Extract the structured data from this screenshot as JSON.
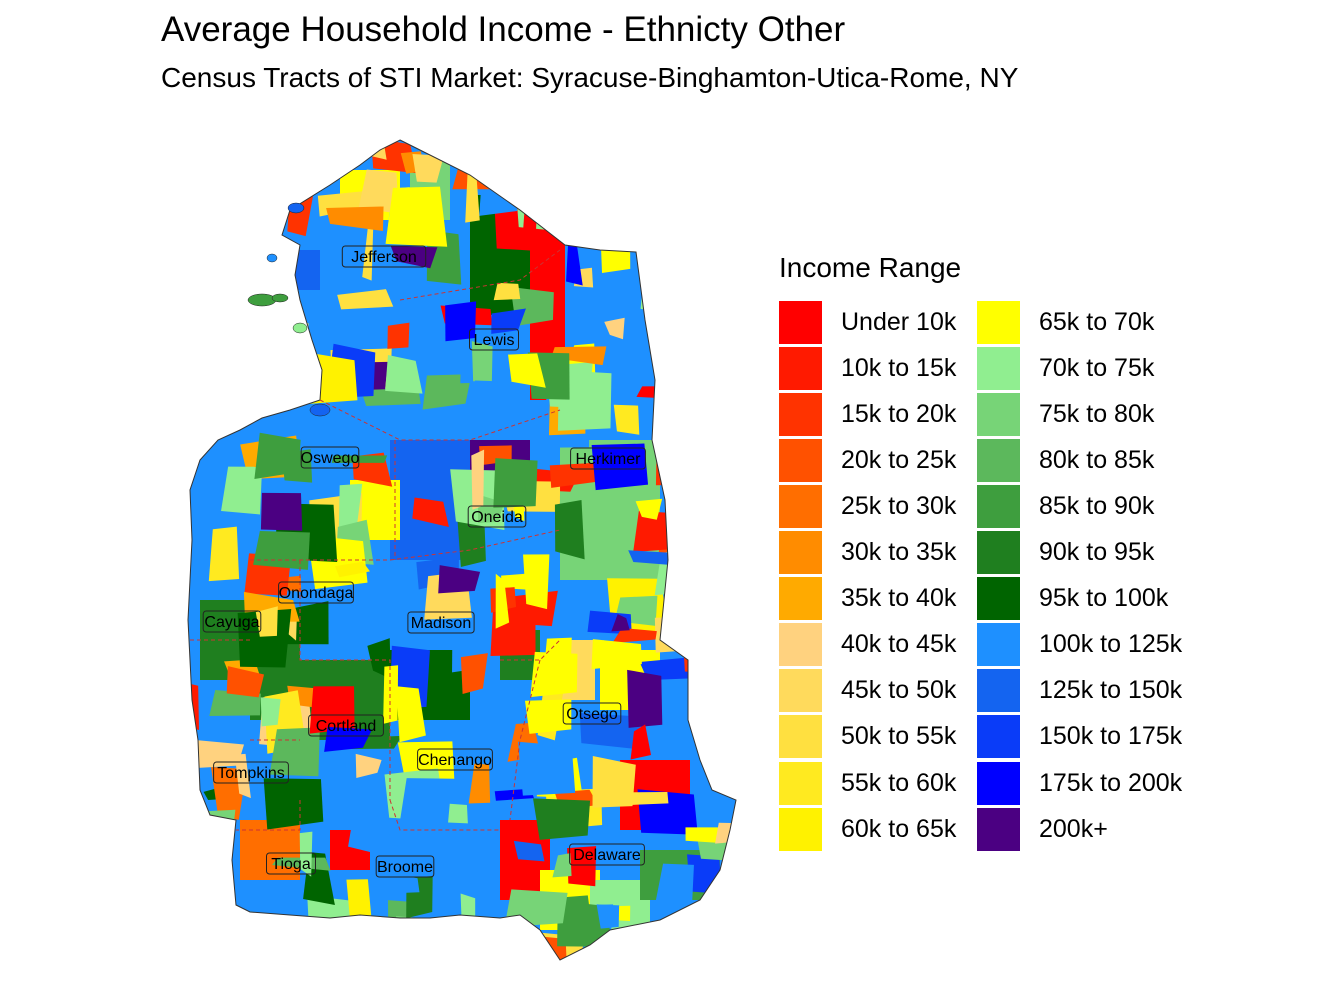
{
  "title": "Average Household Income - Ethnicty Other",
  "subtitle": "Census Tracts of STI Market: Syracuse-Binghamton-Utica-Rome, NY",
  "legend": {
    "title": "Income Range",
    "items": [
      {
        "label": "Under 10k",
        "color": "#FF0000"
      },
      {
        "label": "10k to 15k",
        "color": "#FF1A00"
      },
      {
        "label": "15k to 20k",
        "color": "#FF3300"
      },
      {
        "label": "20k to 25k",
        "color": "#FF5100"
      },
      {
        "label": "25k to 30k",
        "color": "#FF6E00"
      },
      {
        "label": "30k to 35k",
        "color": "#FF8C00"
      },
      {
        "label": "35k to 40k",
        "color": "#FFAA00"
      },
      {
        "label": "40k to 45k",
        "color": "#FFD27F"
      },
      {
        "label": "45k to 50k",
        "color": "#FFDA5C"
      },
      {
        "label": "50k to 55k",
        "color": "#FFE040"
      },
      {
        "label": "55k to 60k",
        "color": "#FFEA20"
      },
      {
        "label": "60k to 65k",
        "color": "#FFF200"
      },
      {
        "label": "65k to 70k",
        "color": "#FFFF00"
      },
      {
        "label": "70k to 75k",
        "color": "#90EE90"
      },
      {
        "label": "75k to 80k",
        "color": "#77D477"
      },
      {
        "label": "80k to 85k",
        "color": "#5CB85C"
      },
      {
        "label": "85k to 90k",
        "color": "#3E9E3E"
      },
      {
        "label": "90k to 95k",
        "color": "#1F7F1F"
      },
      {
        "label": "95k to 100k",
        "color": "#006400"
      },
      {
        "label": "100k to 125k",
        "color": "#1E90FF"
      },
      {
        "label": "125k to 150k",
        "color": "#1464F0"
      },
      {
        "label": "150k to 175k",
        "color": "#0A3CF8"
      },
      {
        "label": "175k to 200k",
        "color": "#0000FF"
      },
      {
        "label": "200k+",
        "color": "#4B0082"
      }
    ]
  },
  "counties": [
    "Jefferson",
    "Lewis",
    "Oswego",
    "Herkimer",
    "Oneida",
    "Onondaga",
    "Cayuga",
    "Madison",
    "Cortland",
    "Otsego",
    "Tompkins",
    "Chenango",
    "Tioga",
    "Broome",
    "Delaware"
  ]
}
